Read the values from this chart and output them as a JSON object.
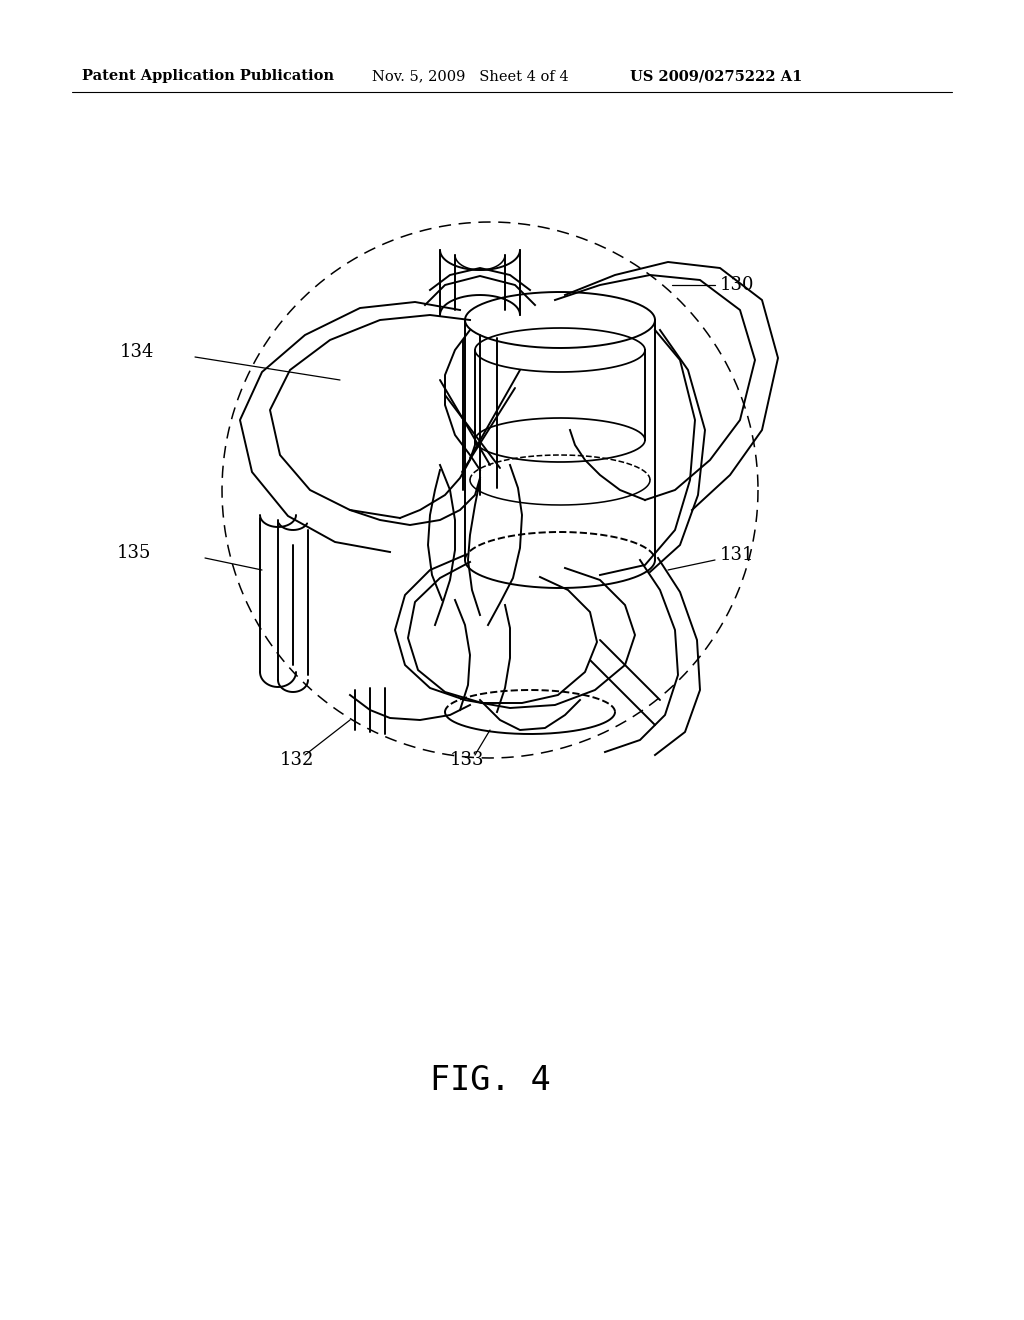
{
  "background_color": "#ffffff",
  "header_left": "Patent Application Publication",
  "header_center": "Nov. 5, 2009   Sheet 4 of 4",
  "header_right": "US 2009/0275222 A1",
  "figure_label": "FIG. 4",
  "header_fontsize": 10.5,
  "figure_label_fontsize": 24,
  "label_fontsize": 13,
  "line_color": "#000000",
  "line_width": 1.4,
  "fig_width": 10.24,
  "fig_height": 13.2,
  "dpi": 100
}
